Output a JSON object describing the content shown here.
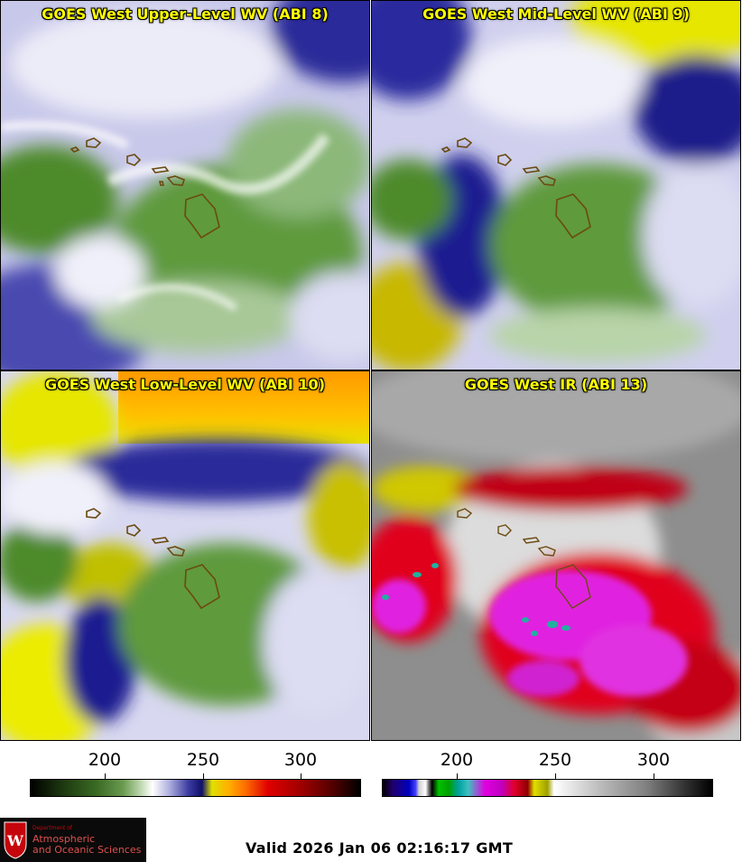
{
  "panels": [
    {
      "title": "GOES West Upper-Level WV (ABI 8)"
    },
    {
      "title": "GOES West Mid-Level WV (ABI 9)"
    },
    {
      "title": "GOES West Low-Level WV (ABI 10)"
    },
    {
      "title": "GOES West IR (ABI 13)"
    }
  ],
  "colorbars": [
    {
      "ticks": [
        "200",
        "250",
        "300"
      ]
    },
    {
      "ticks": [
        "200",
        "250",
        "300"
      ]
    }
  ],
  "logo": {
    "department": "Department of",
    "line1": "Atmospheric",
    "line2": "and Oceanic Sciences",
    "shield_letter": "W"
  },
  "valid_time": "Valid 2026 Jan 06 02:16:17 GMT",
  "colors": {
    "title_yellow": "#ffff00",
    "wv_green": "#4f8a2e",
    "wv_white": "#f4f4fb",
    "wv_blue": "#1c1c8c",
    "wv_yellow": "#e8e800",
    "ir_red": "#e0001e",
    "ir_magenta": "#e020e0",
    "ir_gray": "#8c8c8c"
  }
}
